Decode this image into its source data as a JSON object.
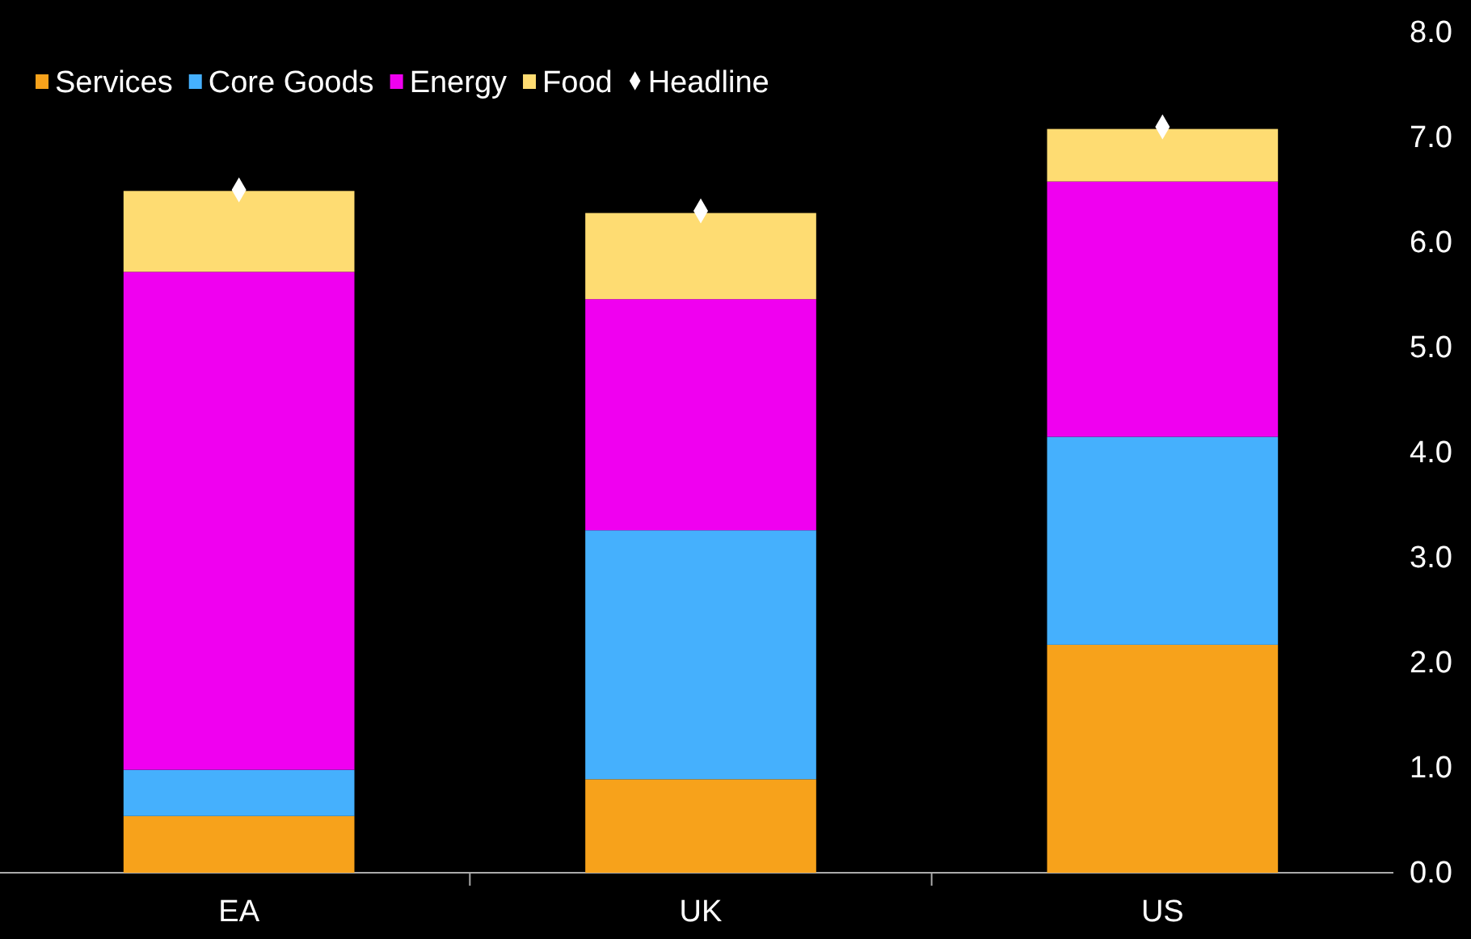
{
  "chart_data": {
    "type": "bar",
    "stacked": true,
    "categories": [
      "EA",
      "UK",
      "US"
    ],
    "series": [
      {
        "name": "Services",
        "color": "#f7a21b",
        "values": [
          0.54,
          0.89,
          2.17
        ]
      },
      {
        "name": "Core Goods",
        "color": "#45b0fd",
        "values": [
          0.44,
          2.37,
          1.98
        ]
      },
      {
        "name": "Energy",
        "color": "#f000f0",
        "values": [
          4.74,
          2.2,
          2.43
        ]
      },
      {
        "name": "Food",
        "color": "#fedc72",
        "values": [
          0.77,
          0.82,
          0.5
        ]
      },
      {
        "name": "Headline",
        "type": "scatter",
        "marker": "diamond",
        "color": "#ffffff",
        "x": [
          "EA",
          "UK",
          "US"
        ],
        "values": [
          6.5,
          6.3,
          7.1
        ]
      }
    ],
    "ylim": [
      0,
      8
    ],
    "yticks": [
      {
        "value": 0,
        "label": "0.0"
      },
      {
        "value": 1,
        "label": "1.0"
      },
      {
        "value": 2,
        "label": "2.0"
      },
      {
        "value": 3,
        "label": "3.0"
      },
      {
        "value": 4,
        "label": "4.0"
      },
      {
        "value": 5,
        "label": "5.0"
      },
      {
        "value": 6,
        "label": "6.0"
      },
      {
        "value": 7,
        "label": "7.0"
      },
      {
        "value": 8,
        "label": "8.0"
      }
    ],
    "grid": false,
    "legend": "top left"
  }
}
